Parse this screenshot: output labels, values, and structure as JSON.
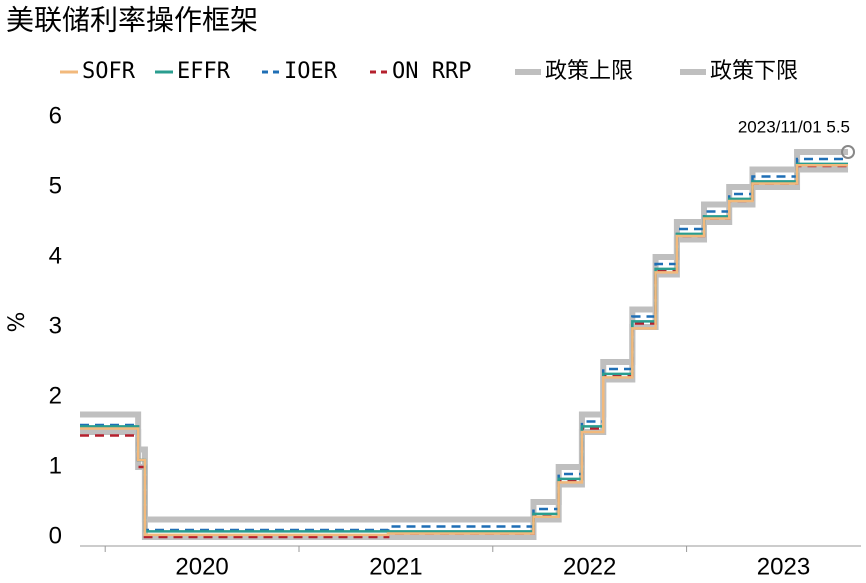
{
  "chart_data": {
    "type": "step-line",
    "title": "美联储利率操作框架",
    "y_label": "%",
    "x": [
      2019.87,
      2020.17,
      2020.205,
      2021.46,
      2022.21,
      2022.34,
      2022.46,
      2022.57,
      2022.72,
      2022.84,
      2022.95,
      2023.09,
      2023.22,
      2023.34,
      2023.57,
      2023.833
    ],
    "series": [
      {
        "name": "SOFR",
        "color": "#f2b97c",
        "style": "solid",
        "width": 2.5,
        "values": [
          1.55,
          1.1,
          0.03,
          0.05,
          0.29,
          0.78,
          1.5,
          2.28,
          2.98,
          3.78,
          4.3,
          4.55,
          4.8,
          5.05,
          5.31,
          5.31
        ]
      },
      {
        "name": "EFFR",
        "color": "#2a9d8f",
        "style": "solid",
        "width": 2.5,
        "values": [
          1.58,
          1.1,
          0.08,
          0.08,
          0.33,
          0.83,
          1.58,
          2.33,
          3.08,
          3.83,
          4.33,
          4.58,
          4.83,
          5.08,
          5.33,
          5.33
        ]
      },
      {
        "name": "IOER",
        "color": "#1f6fb5",
        "style": "dashed",
        "width": 2.5,
        "values": [
          1.6,
          1.1,
          0.1,
          0.15,
          0.4,
          0.9,
          1.65,
          2.4,
          3.15,
          3.9,
          4.4,
          4.65,
          4.9,
          5.15,
          5.4,
          5.4
        ]
      },
      {
        "name": "ON RRP",
        "color": "#b5202e",
        "style": "dashed",
        "width": 2.5,
        "values": [
          1.45,
          1.0,
          0.0,
          0.05,
          0.3,
          0.8,
          1.55,
          2.3,
          3.05,
          3.8,
          4.3,
          4.55,
          4.8,
          5.05,
          5.3,
          5.3
        ]
      },
      {
        "name": "政策上限",
        "color": "#bfbfbf",
        "style": "solid",
        "width": 6,
        "values": [
          1.75,
          1.25,
          0.25,
          0.25,
          0.5,
          1.0,
          1.75,
          2.5,
          3.25,
          4.0,
          4.5,
          4.75,
          5.0,
          5.25,
          5.5,
          5.5
        ]
      },
      {
        "name": "政策下限",
        "color": "#bfbfbf",
        "style": "solid",
        "width": 6,
        "values": [
          1.5,
          1.0,
          0.0,
          0.0,
          0.25,
          0.75,
          1.5,
          2.25,
          3.0,
          3.75,
          4.25,
          4.5,
          4.75,
          5.0,
          5.25,
          5.25
        ]
      }
    ],
    "annotation": "2023/11/01 5.5",
    "xlim": [
      2019.87,
      2023.9
    ],
    "xticks": [
      {
        "value": 2020,
        "label": "2020"
      },
      {
        "value": 2021,
        "label": "2021"
      },
      {
        "value": 2022,
        "label": "2022"
      },
      {
        "value": 2023,
        "label": "2023"
      }
    ],
    "ylim": [
      0,
      6
    ],
    "yticks": [
      0,
      1,
      2,
      3,
      4,
      5,
      6
    ],
    "grid": false
  }
}
